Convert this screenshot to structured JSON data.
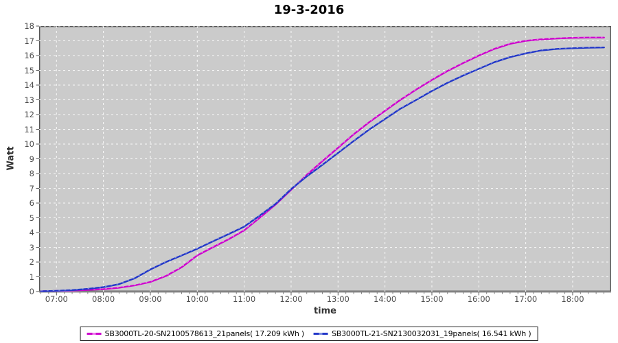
{
  "title": "19-3-2016",
  "chart_data": {
    "type": "line",
    "title": "19-3-2016",
    "xlabel": "time",
    "ylabel": "Watt",
    "x_ticks": [
      "07:00",
      "08:00",
      "09:00",
      "10:00",
      "11:00",
      "12:00",
      "13:00",
      "14:00",
      "15:00",
      "16:00",
      "17:00",
      "18:00"
    ],
    "x_tick_hours": [
      7,
      8,
      9,
      10,
      11,
      12,
      13,
      14,
      15,
      16,
      17,
      18
    ],
    "xlim_hours": [
      6.63,
      18.82
    ],
    "ylim": [
      0,
      18
    ],
    "y_tick_step": 1,
    "grid": "white dashed on gray",
    "plot_background": "#cbcbcb",
    "legend_position": "bottom",
    "series": [
      {
        "name": "SB3000TL-20-SN2100578613_21panels( 17.209 kWh )",
        "total_kwh": 17.209,
        "color": "#cc00cc",
        "marker_color": "#ee7bee",
        "points": [
          [
            6.67,
            0.02
          ],
          [
            7.0,
            0.04
          ],
          [
            7.33,
            0.07
          ],
          [
            7.67,
            0.11
          ],
          [
            8.0,
            0.16
          ],
          [
            8.33,
            0.26
          ],
          [
            8.67,
            0.42
          ],
          [
            9.0,
            0.65
          ],
          [
            9.33,
            1.05
          ],
          [
            9.67,
            1.65
          ],
          [
            10.0,
            2.45
          ],
          [
            10.33,
            3.0
          ],
          [
            10.67,
            3.55
          ],
          [
            11.0,
            4.15
          ],
          [
            11.33,
            5.0
          ],
          [
            11.67,
            5.9
          ],
          [
            12.0,
            6.9
          ],
          [
            12.33,
            7.9
          ],
          [
            12.67,
            8.85
          ],
          [
            13.0,
            9.75
          ],
          [
            13.33,
            10.65
          ],
          [
            13.67,
            11.5
          ],
          [
            14.0,
            12.25
          ],
          [
            14.33,
            13.0
          ],
          [
            14.67,
            13.7
          ],
          [
            15.0,
            14.35
          ],
          [
            15.33,
            14.95
          ],
          [
            15.67,
            15.5
          ],
          [
            16.0,
            16.0
          ],
          [
            16.33,
            16.45
          ],
          [
            16.67,
            16.8
          ],
          [
            17.0,
            17.0
          ],
          [
            17.33,
            17.1
          ],
          [
            17.67,
            17.16
          ],
          [
            18.0,
            17.2
          ],
          [
            18.33,
            17.22
          ],
          [
            18.67,
            17.22
          ]
        ]
      },
      {
        "name": "SB3000TL-21-SN2130032031_19panels( 16.541 kWh )",
        "total_kwh": 16.541,
        "color": "#2136c8",
        "marker_color": "#7a8ce0",
        "points": [
          [
            6.67,
            0.02
          ],
          [
            7.0,
            0.05
          ],
          [
            7.33,
            0.1
          ],
          [
            7.67,
            0.18
          ],
          [
            8.0,
            0.3
          ],
          [
            8.33,
            0.5
          ],
          [
            8.67,
            0.9
          ],
          [
            9.0,
            1.5
          ],
          [
            9.33,
            2.0
          ],
          [
            9.67,
            2.45
          ],
          [
            10.0,
            2.9
          ],
          [
            10.33,
            3.4
          ],
          [
            10.67,
            3.9
          ],
          [
            11.0,
            4.4
          ],
          [
            11.33,
            5.15
          ],
          [
            11.67,
            5.95
          ],
          [
            12.0,
            6.95
          ],
          [
            12.33,
            7.8
          ],
          [
            12.67,
            8.6
          ],
          [
            13.0,
            9.4
          ],
          [
            13.33,
            10.2
          ],
          [
            13.67,
            11.0
          ],
          [
            14.0,
            11.7
          ],
          [
            14.33,
            12.4
          ],
          [
            14.67,
            13.0
          ],
          [
            15.0,
            13.6
          ],
          [
            15.33,
            14.15
          ],
          [
            15.67,
            14.65
          ],
          [
            16.0,
            15.1
          ],
          [
            16.33,
            15.55
          ],
          [
            16.67,
            15.9
          ],
          [
            17.0,
            16.15
          ],
          [
            17.33,
            16.35
          ],
          [
            17.67,
            16.45
          ],
          [
            18.0,
            16.5
          ],
          [
            18.33,
            16.53
          ],
          [
            18.67,
            16.55
          ]
        ]
      }
    ],
    "colors": {
      "plot_border": "#545454",
      "gridline": "#ffffff",
      "tick_text": "#4d4d4d",
      "axis_line": "#888888"
    }
  }
}
